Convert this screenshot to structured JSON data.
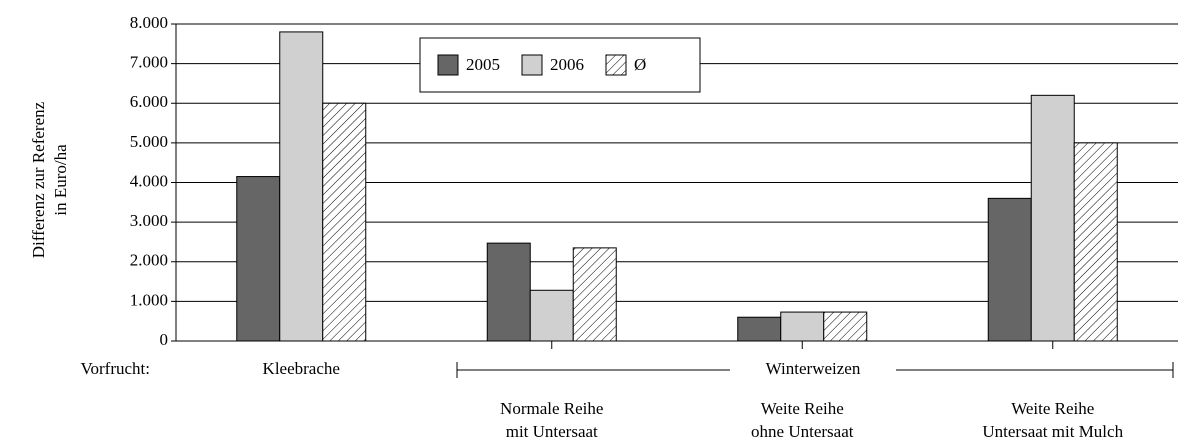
{
  "chart_data": {
    "type": "bar",
    "y_label": [
      "Differenz zur Referenz",
      "in Euro/ha"
    ],
    "categories": [
      [
        "Kleebrache"
      ],
      [
        "Normale Reihe",
        "mit Untersaat"
      ],
      [
        "Weite Reihe",
        "ohne Untersaat"
      ],
      [
        "Weite Reihe",
        "Untersaat mit Mulch"
      ]
    ],
    "series": [
      {
        "name": "2005",
        "color": "#666666",
        "values": [
          4150,
          2470,
          600,
          3600
        ]
      },
      {
        "name": "2006",
        "color": "#d0d0d0",
        "values": [
          7800,
          1280,
          730,
          6200
        ]
      },
      {
        "name": "Ø",
        "color": "#ffffff",
        "pattern": "hatch",
        "values": [
          6000,
          2350,
          730,
          5000
        ]
      }
    ],
    "annotations": [
      "Vorfrucht:",
      "Winterweizen"
    ],
    "ylim": [
      0,
      8000
    ],
    "yticks": [
      0,
      {
        "value": 1000,
        "label": "1.000"
      },
      {
        "value": 2000,
        "label": "2.000"
      },
      {
        "value": 3000,
        "label": "3.000"
      },
      {
        "value": 4000,
        "label": "4.000"
      },
      {
        "value": 5000,
        "label": "5.000"
      },
      {
        "value": 6000,
        "label": "6.000"
      },
      {
        "value": 7000,
        "label": "7.000"
      },
      {
        "value": 8000,
        "label": "8.000"
      }
    ],
    "grid": true
  }
}
